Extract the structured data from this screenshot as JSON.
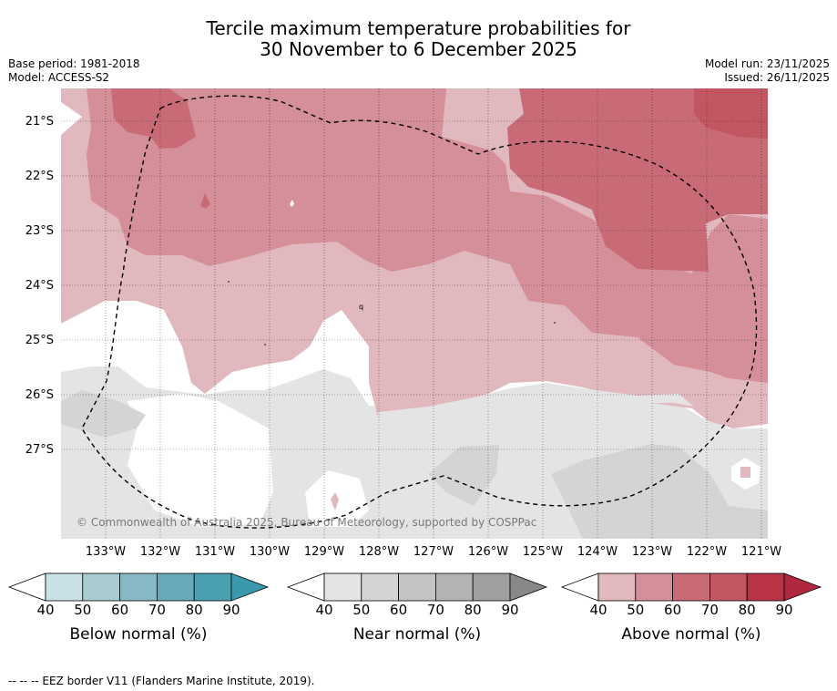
{
  "header": {
    "title_line1": "Tercile maximum temperature probabilities for",
    "title_line2": "30 November to 6 December 2025",
    "base_period": "Base period: 1981-2018",
    "model": "Model: ACCESS-S2",
    "model_run": "Model run: 23/11/2025",
    "issued": "Issued: 26/11/2025"
  },
  "map": {
    "lat_labels": [
      "21°S",
      "22°S",
      "23°S",
      "24°S",
      "25°S",
      "26°S",
      "27°S"
    ],
    "lon_labels": [
      "133°W",
      "132°W",
      "131°W",
      "130°W",
      "129°W",
      "128°W",
      "127°W",
      "126°W",
      "125°W",
      "124°W",
      "123°W",
      "122°W",
      "121°W"
    ],
    "copyright": "© Commonwealth of Australia 2025, Bureau of Meteorology, supported by COSPPac",
    "small_label": "q"
  },
  "legend": {
    "tick_labels": [
      "40",
      "50",
      "60",
      "70",
      "80",
      "90"
    ],
    "below": {
      "label": "Below normal (%)",
      "colors": [
        "#ffffff",
        "#c9e1e6",
        "#a8cad1",
        "#86b9c5",
        "#67a8b9",
        "#4aa0b0",
        "#3a9aab"
      ]
    },
    "near": {
      "label": "Near normal (%)",
      "colors": [
        "#ffffff",
        "#e4e4e4",
        "#d4d4d4",
        "#c4c4c4",
        "#b3b3b3",
        "#a0a0a0",
        "#888888"
      ]
    },
    "above": {
      "label": "Above normal (%)",
      "colors": [
        "#ffffff",
        "#e0b8bd",
        "#d58f98",
        "#c96b76",
        "#c25662",
        "#ba3447",
        "#b02840"
      ]
    }
  },
  "footer": {
    "eez_note": "--  --  -- EEZ border V11 (Flanders Marine Institute, 2019)."
  }
}
